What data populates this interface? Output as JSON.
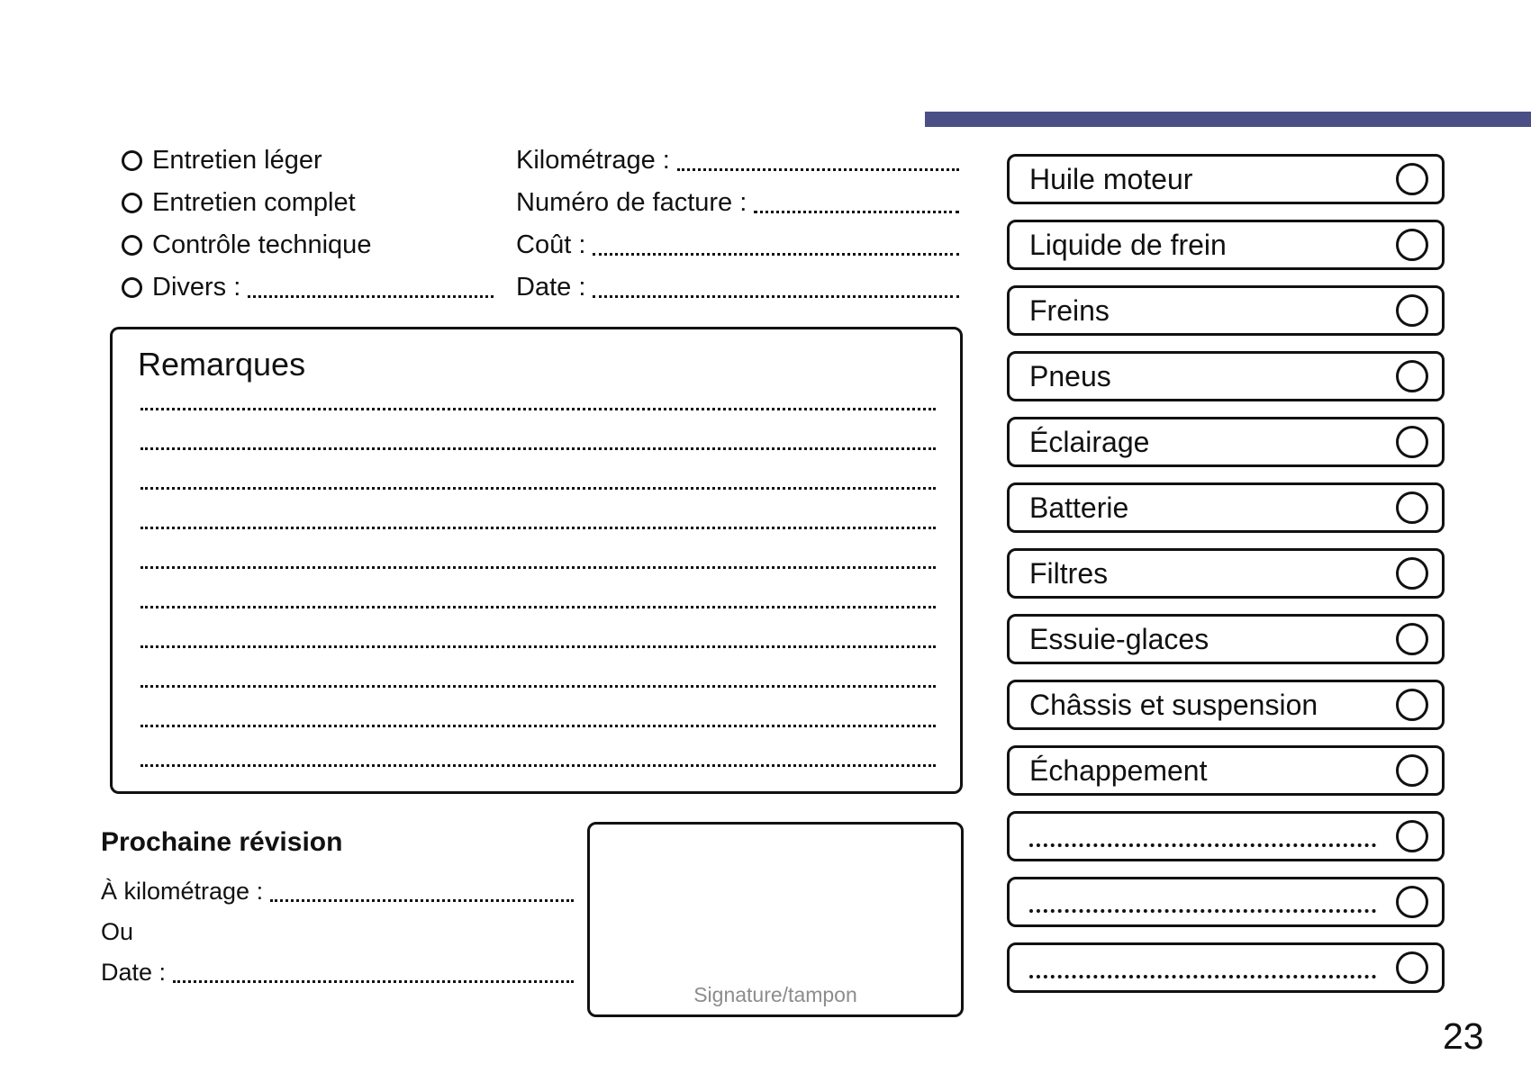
{
  "page": {
    "number": "23",
    "accent_color": "#4A5086"
  },
  "service_type": {
    "rows": [
      {
        "label": "Entretien léger",
        "dotted": false
      },
      {
        "label": "Entretien complet",
        "dotted": false
      },
      {
        "label": "Contrôle technique",
        "dotted": false
      },
      {
        "label": "Divers :",
        "dotted": true
      }
    ]
  },
  "invoice_fields": [
    {
      "label": "Kilométrage :"
    },
    {
      "label": "Numéro de facture :"
    },
    {
      "label": "Coût :"
    },
    {
      "label": "Date :"
    }
  ],
  "remarks": {
    "title": "Remarques",
    "line_count": 10
  },
  "next_service": {
    "title": "Prochaine révision",
    "fields": [
      {
        "label": "À kilométrage :",
        "dotted": true
      },
      {
        "label": "Ou",
        "dotted": false
      },
      {
        "label": "Date :",
        "dotted": true
      }
    ]
  },
  "signature": {
    "label": "Signature/tampon"
  },
  "checklist": {
    "items": [
      {
        "label": "Huile moteur",
        "dotted": false
      },
      {
        "label": "Liquide de frein",
        "dotted": false
      },
      {
        "label": "Freins",
        "dotted": false
      },
      {
        "label": "Pneus",
        "dotted": false
      },
      {
        "label": "Éclairage",
        "dotted": false
      },
      {
        "label": "Batterie",
        "dotted": false
      },
      {
        "label": "Filtres",
        "dotted": false
      },
      {
        "label": "Essuie-glaces",
        "dotted": false
      },
      {
        "label": "Châssis et suspension",
        "dotted": false
      },
      {
        "label": "Échappement",
        "dotted": false
      },
      {
        "label": "",
        "dotted": true
      },
      {
        "label": "",
        "dotted": true
      },
      {
        "label": "",
        "dotted": true
      }
    ]
  }
}
